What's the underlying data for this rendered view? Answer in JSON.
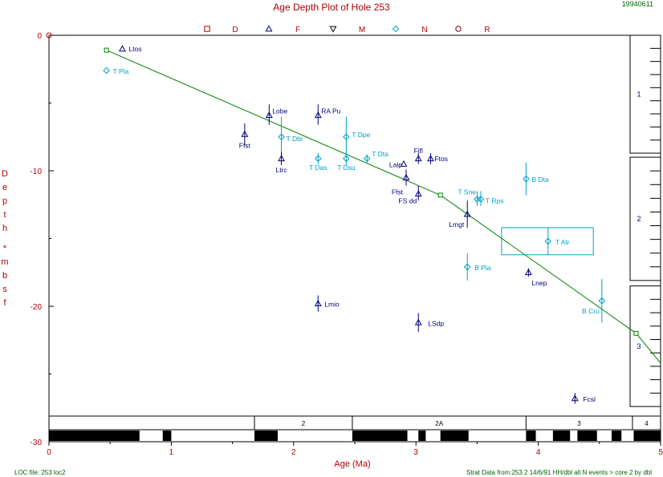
{
  "header": {
    "title": "Age Depth Plot of Hole 253",
    "date_code": "19940611",
    "legend": [
      {
        "symbol": "square",
        "code": "D",
        "color": "#b00000"
      },
      {
        "symbol": "triangle",
        "code": "F",
        "color": "#000080"
      },
      {
        "symbol": "inverted-triangle",
        "code": "M",
        "color": "#000000"
      },
      {
        "symbol": "diamond",
        "code": "N",
        "color": "#00a0c8"
      },
      {
        "symbol": "circle",
        "code": "R",
        "color": "#800000"
      }
    ]
  },
  "footer": {
    "loc_file": "LOC file: 253 loc2",
    "strat_data": "Strat Data from:253 2 14/6/91 HH/dbl all N events > core 2 by dbl"
  },
  "chart_data": {
    "type": "scatter",
    "xlabel": "Age (Ma)",
    "ylabel": [
      "D",
      "e",
      "p",
      "t",
      "h",
      "*",
      "m",
      "b",
      "s",
      "f"
    ],
    "xlim": [
      0,
      5
    ],
    "ylim": [
      0,
      30
    ],
    "y_inverted": true,
    "x_ticks": [
      "0",
      "1",
      "2",
      "3",
      "4",
      "5"
    ],
    "y_ticks": [
      "0",
      "-10",
      "-20",
      "-30"
    ],
    "colors": {
      "axis": "#b00000",
      "foram": "#000080",
      "nanno": "#00a0c8",
      "loc": "#008000"
    },
    "loc_line": [
      [
        0.47,
        1.1
      ],
      [
        3.2,
        11.8
      ],
      [
        4.8,
        22
      ],
      [
        5.0,
        24.2
      ]
    ],
    "events": [
      {
        "label": "Ltos",
        "age": 0.6,
        "depth": 1.0,
        "group": "foram",
        "err_age": null,
        "err_depth": null
      },
      {
        "label": "T Pla",
        "age": 0.47,
        "depth": 2.6,
        "group": "nanno",
        "err_age": null,
        "err_depth": null
      },
      {
        "label": "Lobe",
        "age": 1.8,
        "depth": 5.9,
        "group": "foram",
        "err_age": null,
        "err_depth": [
          5.1,
          6.6
        ]
      },
      {
        "label": "RA Pu",
        "age": 2.2,
        "depth": 5.9,
        "group": "foram",
        "err_age": null,
        "err_depth": [
          5.1,
          6.6
        ]
      },
      {
        "label": "Ffst",
        "age": 1.6,
        "depth": 7.3,
        "group": "foram",
        "err_age": null,
        "err_depth": [
          6.5,
          8.1
        ]
      },
      {
        "label": "T Dbr",
        "age": 1.9,
        "depth": 7.5,
        "group": "nanno",
        "err_age": null,
        "err_depth": [
          6.0,
          9.0
        ]
      },
      {
        "label": "T Dpe",
        "age": 2.43,
        "depth": 7.5,
        "group": "nanno",
        "err_age": null,
        "err_depth": [
          6.0,
          9.0
        ]
      },
      {
        "label": "Ltrc",
        "age": 1.9,
        "depth": 9.1,
        "group": "foram",
        "err_age": null,
        "err_depth": [
          8.6,
          9.6
        ]
      },
      {
        "label": "T Das",
        "age": 2.2,
        "depth": 9.1,
        "group": "nanno",
        "err_age": null,
        "err_depth": [
          8.7,
          9.5
        ]
      },
      {
        "label": "T Dsu",
        "age": 2.43,
        "depth": 9.1,
        "group": "nanno",
        "err_age": null,
        "err_depth": [
          8.6,
          9.6
        ]
      },
      {
        "label": "T Dta",
        "age": 2.6,
        "depth": 9.1,
        "group": "nanno",
        "err_age": null,
        "err_depth": [
          8.8,
          9.4
        ]
      },
      {
        "label": "Fifl",
        "age": 3.02,
        "depth": 9.1,
        "group": "foram",
        "err_age": null,
        "err_depth": [
          8.7,
          9.5
        ]
      },
      {
        "label": "Ftos",
        "age": 3.12,
        "depth": 9.1,
        "group": "foram",
        "err_age": null,
        "err_depth": [
          8.7,
          9.5
        ]
      },
      {
        "label": "Lalp",
        "age": 2.9,
        "depth": 9.5,
        "group": "foram",
        "err_age": null,
        "err_depth": null
      },
      {
        "label": "Ffst",
        "age": 2.92,
        "depth": 10.5,
        "group": "foram",
        "err_age": null,
        "err_depth": [
          9.9,
          11.1
        ]
      },
      {
        "label": "FS dd",
        "age": 3.02,
        "depth": 11.7,
        "group": "foram",
        "err_age": null,
        "err_depth": [
          11.1,
          12.2
        ]
      },
      {
        "label": "B Dta",
        "age": 3.9,
        "depth": 10.6,
        "group": "nanno",
        "err_age": null,
        "err_depth": [
          9.4,
          11.8
        ]
      },
      {
        "label": "T Sne",
        "age": 3.5,
        "depth": 12.1,
        "group": "nanno",
        "err_age": null,
        "err_depth": [
          11.5,
          12.6
        ]
      },
      {
        "label": "T Rps",
        "age": 3.53,
        "depth": 12.1,
        "group": "nanno",
        "err_age": null,
        "err_depth": [
          11.5,
          12.6
        ]
      },
      {
        "label": "Lmgt",
        "age": 3.42,
        "depth": 13.2,
        "group": "foram",
        "err_age": null,
        "err_depth": [
          12.2,
          14.2
        ]
      },
      {
        "label": "T Atr",
        "age": 4.08,
        "depth": 15.2,
        "group": "nanno",
        "err_age": [
          3.7,
          4.45
        ],
        "err_depth": [
          14.2,
          16.2
        ],
        "box": true
      },
      {
        "label": "B Pla",
        "age": 3.42,
        "depth": 17.1,
        "group": "nanno",
        "err_age": null,
        "err_depth": [
          16.1,
          18.1
        ]
      },
      {
        "label": "Lnep",
        "age": 3.92,
        "depth": 17.5,
        "group": "foram",
        "err_age": null,
        "err_depth": [
          17.2,
          17.8
        ]
      },
      {
        "label": "B Cru",
        "age": 4.52,
        "depth": 19.6,
        "group": "nanno",
        "err_age": null,
        "err_depth": [
          18.0,
          21.2
        ]
      },
      {
        "label": "Lmio",
        "age": 2.2,
        "depth": 19.8,
        "group": "foram",
        "err_age": null,
        "err_depth": [
          19.2,
          20.4
        ]
      },
      {
        "label": "LSdp",
        "age": 3.02,
        "depth": 21.2,
        "group": "foram",
        "err_age": null,
        "err_depth": [
          20.5,
          21.9
        ]
      },
      {
        "label": "Fcsl",
        "age": 4.3,
        "depth": 26.8,
        "group": "foram",
        "err_age": null,
        "err_depth": [
          26.4,
          27.2
        ]
      }
    ],
    "cores": [
      {
        "label": "1",
        "top": 0,
        "bottom": 8.7
      },
      {
        "label": "2",
        "top": 9.0,
        "bottom": 18.1
      },
      {
        "label": "3",
        "top": 18.5,
        "bottom": 27.4
      }
    ],
    "epochs": [
      {
        "label": "2",
        "from": 1.68,
        "to": 2.48
      },
      {
        "label": "2A",
        "from": 2.48,
        "to": 3.9
      },
      {
        "label": "3",
        "from": 3.9,
        "to": 4.77
      },
      {
        "label": "4",
        "from": 4.77,
        "to": 5.0
      }
    ],
    "polarity_black": [
      [
        0,
        0.74
      ],
      [
        0.93,
        1.0
      ],
      [
        1.68,
        1.87
      ],
      [
        2.48,
        2.93
      ],
      [
        3.02,
        3.08
      ],
      [
        3.2,
        3.43
      ],
      [
        3.9,
        3.98
      ],
      [
        4.12,
        4.26
      ],
      [
        4.32,
        4.48
      ],
      [
        4.6,
        4.68
      ],
      [
        4.78,
        5.0
      ]
    ]
  }
}
